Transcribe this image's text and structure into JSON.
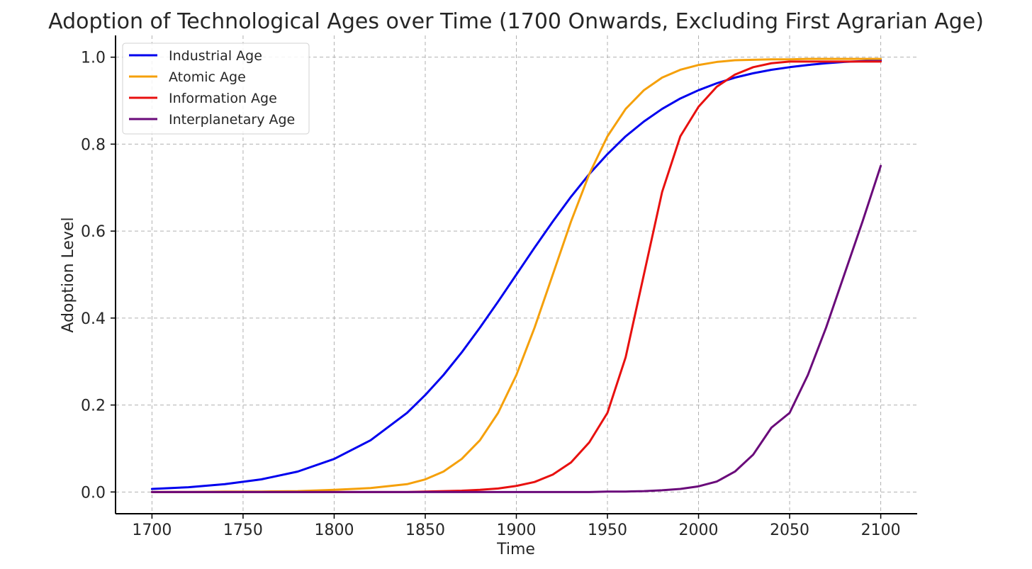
{
  "chart_data": {
    "type": "line",
    "title": "Adoption of Technological Ages over Time (1700 Onwards, Excluding First Agrarian Age)",
    "xlabel": "Time",
    "ylabel": "Adoption Level",
    "xlim": [
      1680,
      2120
    ],
    "ylim": [
      -0.05,
      1.05
    ],
    "xticks": [
      1700,
      1750,
      1800,
      1850,
      1900,
      1950,
      2000,
      2050,
      2100
    ],
    "yticks": [
      0.0,
      0.2,
      0.4,
      0.6,
      0.8,
      1.0
    ],
    "ytick_labels": [
      "0.0",
      "0.2",
      "0.4",
      "0.6",
      "0.8",
      "1.0"
    ],
    "grid": true,
    "legend_position": "top-left",
    "x": [
      1700,
      1720,
      1740,
      1760,
      1780,
      1800,
      1820,
      1840,
      1850,
      1860,
      1870,
      1880,
      1890,
      1900,
      1910,
      1920,
      1930,
      1940,
      1950,
      1960,
      1970,
      1980,
      1990,
      2000,
      2010,
      2020,
      2030,
      2040,
      2050,
      2060,
      2070,
      2080,
      2090,
      2100
    ],
    "series": [
      {
        "name": "Industrial Age",
        "color": "#0000ee",
        "values": [
          0.007,
          0.011,
          0.018,
          0.029,
          0.047,
          0.076,
          0.119,
          0.182,
          0.223,
          0.269,
          0.321,
          0.378,
          0.438,
          0.5,
          0.562,
          0.622,
          0.679,
          0.731,
          0.777,
          0.818,
          0.852,
          0.881,
          0.905,
          0.924,
          0.94,
          0.953,
          0.963,
          0.971,
          0.977,
          0.982,
          0.986,
          0.989,
          0.991,
          0.993
        ]
      },
      {
        "name": "Atomic Age",
        "color": "#f5a00a",
        "values": [
          0.0,
          0.0,
          0.001,
          0.001,
          0.002,
          0.005,
          0.009,
          0.018,
          0.029,
          0.047,
          0.076,
          0.119,
          0.182,
          0.269,
          0.378,
          0.5,
          0.622,
          0.731,
          0.818,
          0.881,
          0.924,
          0.953,
          0.971,
          0.982,
          0.989,
          0.993,
          0.994,
          0.995,
          0.995,
          0.996,
          0.996,
          0.996,
          0.996,
          0.996
        ]
      },
      {
        "name": "Information Age",
        "color": "#e8100f",
        "values": [
          0.0,
          0.0,
          0.0,
          0.0,
          0.0,
          0.0,
          0.0,
          0.0,
          0.001,
          0.002,
          0.003,
          0.005,
          0.008,
          0.014,
          0.023,
          0.04,
          0.068,
          0.114,
          0.182,
          0.31,
          0.5,
          0.69,
          0.818,
          0.886,
          0.932,
          0.96,
          0.977,
          0.986,
          0.99,
          0.99,
          0.99,
          0.99,
          0.99,
          0.99
        ]
      },
      {
        "name": "Interplanetary Age",
        "color": "#6a0a7a",
        "values": [
          0.0,
          0.0,
          0.0,
          0.0,
          0.0,
          0.0,
          0.0,
          0.0,
          0.0,
          0.0,
          0.0,
          0.0,
          0.0,
          0.0,
          0.0,
          0.0,
          0.0,
          0.0,
          0.001,
          0.001,
          0.002,
          0.004,
          0.007,
          0.013,
          0.024,
          0.047,
          0.086,
          0.148,
          0.182,
          0.269,
          0.378,
          0.5,
          0.622,
          0.75
        ]
      }
    ]
  }
}
